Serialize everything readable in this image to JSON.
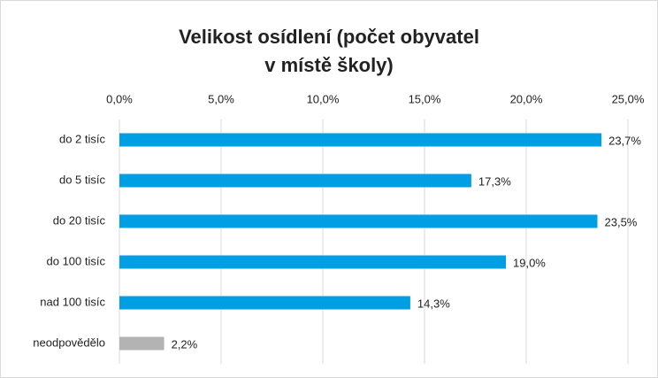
{
  "chart_data": {
    "type": "hbar",
    "title": [
      "Velikost osídlení (počet obyvatel",
      "v místě školy)"
    ],
    "categories": [
      "do 2 tisíc",
      "do 5 tisíc",
      "do 20 tisíc",
      "do 100 tisíc",
      "nad 100 tisíc",
      "neodpovědělo"
    ],
    "values": [
      23.7,
      17.3,
      23.5,
      19.0,
      14.3,
      2.2
    ],
    "value_labels": [
      "23,7%",
      "17,3%",
      "23,5%",
      "19,0%",
      "14,3%",
      "2,2%"
    ],
    "colors": [
      "#009fe3",
      "#009fe3",
      "#009fe3",
      "#009fe3",
      "#009fe3",
      "#b3b3b3"
    ],
    "xlim": [
      0,
      25
    ],
    "xticks": [
      {
        "value": 0,
        "label": "0,0%"
      },
      {
        "value": 5,
        "label": "5,0%"
      },
      {
        "value": 10,
        "label": "10,0%"
      },
      {
        "value": 15,
        "label": "15,0%"
      },
      {
        "value": 20,
        "label": "20,0%"
      },
      {
        "value": 25,
        "label": "25,0%"
      }
    ],
    "grid": true
  }
}
